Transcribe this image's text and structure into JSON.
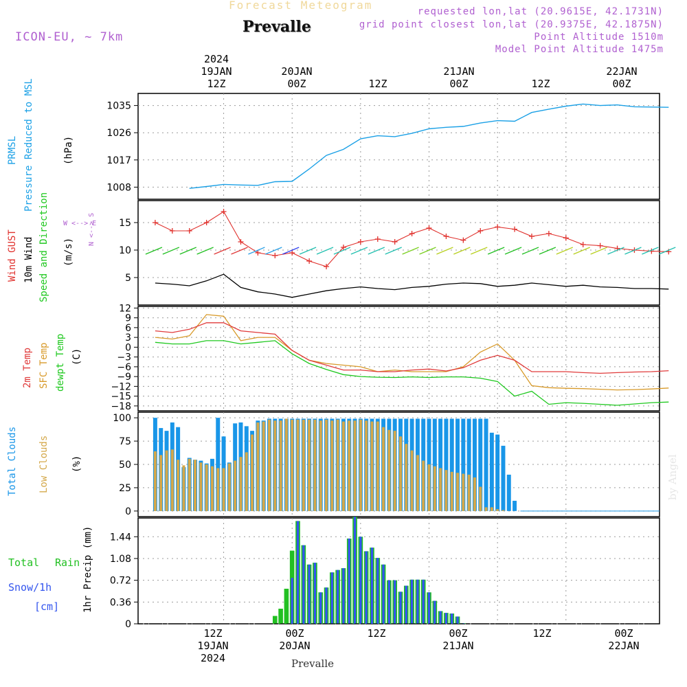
{
  "header": {
    "top_title": "Forecast Meteogram",
    "location": "Prevalle",
    "model": "ICON-EU, ~ 7km",
    "requested": "requested lon,lat (20.9615E, 42.1731N)",
    "grid_point": "grid point closest lon,lat (20.9375E, 42.1875N)",
    "point_altitude": "Point Altitude 1510m",
    "model_altitude": "Model Point Altitude 1475m",
    "bottom_label": "Prevalle",
    "watermark": "by Angel"
  },
  "time_axis": {
    "top": [
      {
        "lines": [
          "2024",
          "19JAN",
          "12Z"
        ]
      },
      {
        "lines": [
          "20JAN",
          "00Z"
        ]
      },
      {
        "lines": [
          "12Z"
        ]
      },
      {
        "lines": [
          "21JAN",
          "00Z"
        ]
      },
      {
        "lines": [
          "12Z"
        ]
      },
      {
        "lines": [
          "22JAN",
          "00Z"
        ]
      }
    ],
    "bottom": [
      {
        "lines": [
          "12Z",
          "19JAN",
          "2024"
        ]
      },
      {
        "lines": [
          "00Z",
          "20JAN"
        ]
      },
      {
        "lines": [
          "12Z"
        ]
      },
      {
        "lines": [
          "00Z",
          "21JAN"
        ]
      },
      {
        "lines": [
          "12Z"
        ]
      },
      {
        "lines": [
          "00Z",
          "22JAN"
        ]
      }
    ]
  },
  "panel_labels": {
    "pressure": {
      "l1": "PRMSL",
      "l2": "Pressure Reduced to MSL",
      "unit": "(hPa)"
    },
    "wind": {
      "gust": "Wind GUST",
      "l2": "10m Wind",
      "l3": "Speed and Direction",
      "unit": "(m/s)",
      "compass_ns": "N <--> S",
      "compass_we": "W <--> E"
    },
    "temp": {
      "l1": "2m Temp",
      "l2": "SFC Temp",
      "l3": "dewpt Temp",
      "unit": "(C)"
    },
    "clouds": {
      "l1": "Total Clouds",
      "l2": "Low Clouds",
      "unit": "(%)"
    },
    "precip": {
      "total": "Total",
      "rain": "Rain",
      "snow": "Snow/1h",
      "snow_unit": "[cm]",
      "axis": "1hr Precip (mm)"
    }
  },
  "colors": {
    "pressure": "#1aa0e6",
    "gust": "#e0302c",
    "wind": "#000000",
    "temp2m": "#e03a3a",
    "sfc": "#d89a2a",
    "dewpt": "#1ec81e",
    "total_clouds": "#1996e8",
    "low_clouds": "#d4a84a",
    "rain": "#22c022",
    "snow": "#3355ee",
    "purple": "#b060d0"
  },
  "chart_data": [
    {
      "type": "line",
      "name": "pressure",
      "x_hours": [
        -18,
        -15,
        -12,
        -9,
        -6,
        -3,
        0,
        3,
        6,
        9,
        12,
        15,
        18,
        21,
        24,
        27,
        30,
        33,
        36,
        39,
        42,
        45,
        48,
        51,
        54,
        57,
        60,
        63,
        66
      ],
      "y": [
        1007.6,
        1008.2,
        1008.9,
        1008.7,
        1008.6,
        1009.8,
        1009.9,
        1014,
        1018.5,
        1020.5,
        1024,
        1025,
        1024.7,
        1025.8,
        1027.3,
        1027.8,
        1028.1,
        1029.2,
        1030,
        1029.8,
        1032.7,
        1033.8,
        1034.8,
        1035.5,
        1035,
        1035.2,
        1034.6,
        1034.5,
        1034.4
      ],
      "ylim": [
        1004,
        1039
      ],
      "yticks": [
        1008,
        1017,
        1026,
        1035
      ]
    },
    {
      "type": "line",
      "name": "wind",
      "x_hours": [
        -24,
        -21,
        -18,
        -15,
        -12,
        -9,
        -6,
        -3,
        0,
        3,
        6,
        9,
        12,
        15,
        18,
        21,
        24,
        27,
        30,
        33,
        36,
        39,
        42,
        45,
        48,
        51,
        54,
        57,
        60,
        63,
        66
      ],
      "wind": [
        4,
        3.8,
        3.5,
        4.4,
        5.6,
        3.2,
        2.4,
        2,
        1.4,
        2,
        2.6,
        3,
        3.3,
        3,
        2.8,
        3.2,
        3.4,
        3.8,
        4,
        3.9,
        3.4,
        3.6,
        4,
        3.7,
        3.4,
        3.6,
        3.3,
        3.2,
        3,
        3,
        2.9
      ],
      "gust": [
        15,
        13.5,
        13.5,
        15,
        17,
        11.5,
        9.5,
        9,
        9.5,
        8,
        7,
        10.5,
        11.5,
        12,
        11.5,
        13,
        14,
        12.5,
        11.8,
        13.5,
        14.2,
        13.8,
        12.5,
        13,
        12.2,
        11,
        10.8,
        10.3,
        10,
        9.8,
        9.7
      ],
      "ylim": [
        0,
        19
      ],
      "yticks": [
        5,
        10,
        15
      ]
    },
    {
      "type": "line",
      "name": "temperature",
      "x_hours": [
        -24,
        -21,
        -18,
        -15,
        -12,
        -9,
        -6,
        -3,
        0,
        3,
        6,
        9,
        12,
        15,
        18,
        21,
        24,
        27,
        30,
        33,
        36,
        39,
        42,
        45,
        48,
        51,
        54,
        57,
        60,
        63,
        66
      ],
      "temp2m": [
        5,
        4.5,
        5.5,
        7.5,
        7.5,
        5,
        4.5,
        4,
        -1,
        -4,
        -5.5,
        -7,
        -7,
        -7.5,
        -7.5,
        -7,
        -6.7,
        -7.3,
        -6.3,
        -4,
        -2.5,
        -4,
        -7.5,
        -7.5,
        -7.5,
        -7.8,
        -8,
        -7.8,
        -7.6,
        -7.5,
        -7.2
      ],
      "sfc": [
        3,
        2.5,
        3.5,
        10,
        9.5,
        2,
        3,
        3,
        -1,
        -4,
        -5,
        -5.5,
        -6,
        -7.5,
        -7,
        -7.5,
        -7.5,
        -7.5,
        -6,
        -1.5,
        1,
        -4,
        -11.8,
        -12.4,
        -12.6,
        -12.7,
        -12.9,
        -13.1,
        -13,
        -12.8,
        -12.5
      ],
      "dewpt": [
        1.5,
        1,
        1,
        2,
        2,
        1,
        1.5,
        2,
        -2,
        -5,
        -6.8,
        -8.4,
        -9,
        -9.2,
        -9.3,
        -9.1,
        -9.3,
        -9.1,
        -9.1,
        -9.5,
        -10.5,
        -15,
        -13.5,
        -17.5,
        -17,
        -17.2,
        -17.5,
        -17.8,
        -17.4,
        -17,
        -16.8
      ],
      "ylim": [
        -19.5,
        12.5
      ],
      "yticks": [
        -18,
        -15,
        -12,
        -9,
        -6,
        -3,
        0,
        3,
        6,
        9,
        12
      ]
    },
    {
      "type": "bar",
      "name": "clouds",
      "x_hours": [
        -24,
        -23,
        -22,
        -21,
        -20,
        -19,
        -18,
        -17,
        -16,
        -15,
        -14,
        -13,
        -12,
        -11,
        -10,
        -9,
        -8,
        -7,
        -6,
        -5,
        -4,
        -3,
        -2,
        -1,
        0,
        1,
        2,
        3,
        4,
        5,
        6,
        7,
        8,
        9,
        10,
        11,
        12,
        13,
        14,
        15,
        16,
        17,
        18,
        19,
        20,
        21,
        22,
        23,
        24,
        25,
        26,
        27,
        28,
        29,
        30,
        31,
        32,
        33,
        34,
        35,
        36,
        37,
        38,
        39,
        40,
        41,
        42,
        43,
        44,
        45,
        46,
        47,
        48,
        49,
        50,
        51,
        52,
        53,
        54,
        55,
        56,
        57,
        58,
        59,
        60,
        61,
        62,
        63,
        64,
        65,
        66
      ],
      "total": [
        100,
        89,
        86,
        95,
        90,
        47,
        57,
        55,
        54,
        51,
        56,
        100,
        80,
        52,
        94,
        95,
        91,
        86,
        97,
        97,
        99,
        99,
        99,
        99,
        99,
        99,
        99,
        99,
        99,
        99,
        99,
        99,
        99,
        99,
        99,
        99,
        99,
        99,
        99,
        99,
        99,
        99,
        99,
        99,
        99,
        99,
        99,
        99,
        99,
        99,
        99,
        99,
        99,
        99,
        99,
        99,
        99,
        99,
        99,
        84,
        82,
        70,
        39,
        11,
        0,
        0,
        0,
        0,
        0,
        0,
        0,
        0,
        0,
        0,
        0,
        0,
        0,
        0,
        0,
        0,
        0,
        0,
        0,
        0,
        0,
        0,
        0,
        0,
        0,
        0,
        0
      ],
      "low": [
        64,
        60,
        65,
        66,
        55,
        49,
        56,
        55,
        52,
        50,
        48,
        46,
        46,
        51,
        54,
        58,
        63,
        82,
        95,
        96,
        98,
        97,
        97,
        99,
        98,
        98,
        98,
        98,
        98,
        97,
        98,
        97,
        98,
        96,
        97,
        97,
        98,
        97,
        96,
        96,
        90,
        87,
        86,
        80,
        72,
        65,
        60,
        54,
        50,
        48,
        46,
        44,
        42,
        41,
        40,
        39,
        36,
        26,
        4,
        4,
        2,
        1,
        0,
        0,
        0,
        0,
        0,
        0,
        0,
        0,
        0,
        0,
        0,
        0,
        0,
        0,
        0,
        0,
        0,
        0,
        0,
        0,
        0,
        0,
        0,
        0,
        0,
        0,
        0,
        0,
        0
      ],
      "ylim": [
        -6,
        106
      ],
      "yticks": [
        0,
        25,
        50,
        75,
        100
      ]
    },
    {
      "type": "bar",
      "name": "precipitation",
      "x_hours": [
        -3,
        -2,
        -1,
        0,
        1,
        2,
        3,
        4,
        5,
        6,
        7,
        8,
        9,
        10,
        11,
        12,
        13,
        14,
        15,
        16,
        17,
        18,
        19,
        20,
        21,
        22,
        23,
        24,
        25,
        26,
        27,
        28,
        29,
        30,
        31
      ],
      "rain": [
        0.13,
        0.25,
        0.58,
        1.21,
        1.7,
        1.3,
        0.98,
        1.01,
        0.52,
        0.6,
        0.85,
        0.89,
        0.92,
        1.41,
        1.77,
        1.44,
        1.2,
        1.26,
        1.09,
        0.98,
        0.72,
        0.72,
        0.53,
        0.63,
        0.73,
        0.73,
        0.73,
        0.52,
        0.38,
        0.21,
        0.18,
        0.17,
        0.12,
        0.01,
        0
      ],
      "snow": [
        0,
        0,
        0,
        0.76,
        1.7,
        1.3,
        0.98,
        1.01,
        0.52,
        0.6,
        0.85,
        0.89,
        0.92,
        1.41,
        1.77,
        1.44,
        1.2,
        1.26,
        1.09,
        0.98,
        0.72,
        0.72,
        0.53,
        0.63,
        0.73,
        0.73,
        0.73,
        0.52,
        0.38,
        0.21,
        0.18,
        0.17,
        0.12,
        0.01,
        0
      ],
      "ylim": [
        0,
        1.75
      ],
      "yticks": [
        0,
        0.36,
        0.72,
        1.08,
        1.44
      ]
    }
  ]
}
